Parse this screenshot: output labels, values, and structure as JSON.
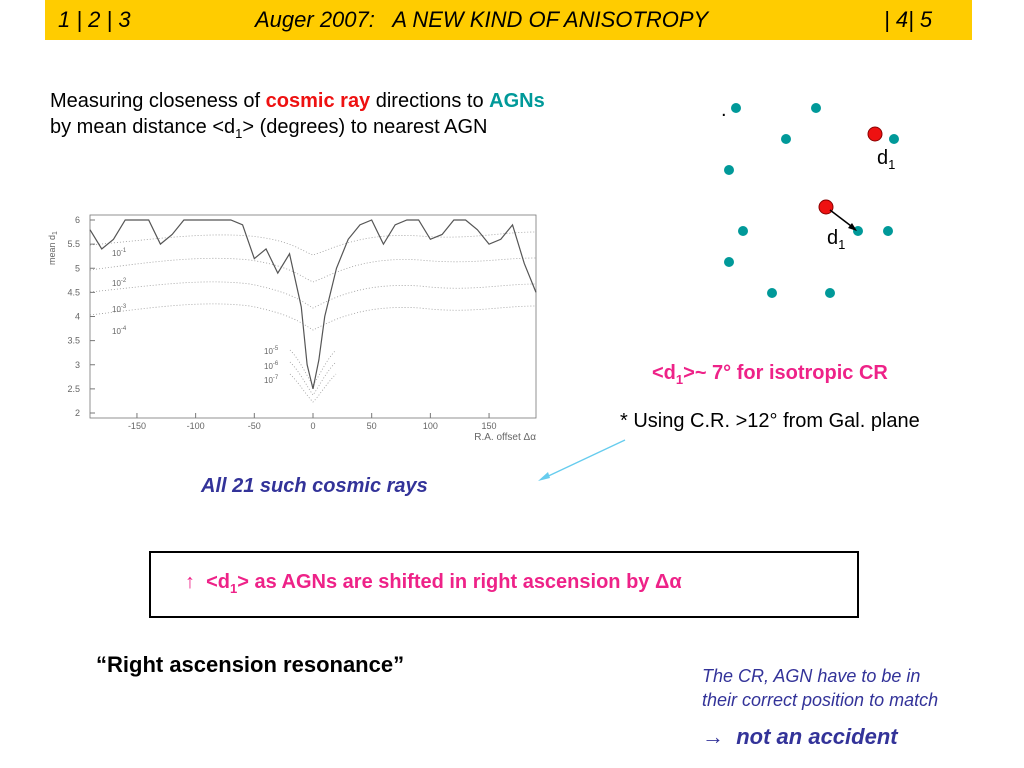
{
  "header": {
    "left": "1 | 2 | 3",
    "title": "Auger 2007:   A NEW KIND OF ANISOTROPY",
    "right": "| 4| 5"
  },
  "intro": {
    "a": "Measuring closeness of ",
    "b": "cosmic ray",
    "c": " directions to ",
    "d": "AGNs",
    "e": "by mean distance <d",
    "f": "1",
    "g": "> (degrees) to nearest AGN"
  },
  "diagram": {
    "dot": ".",
    "label1": {
      "text": "d",
      "sub": "1"
    },
    "label2": {
      "text": "d",
      "sub": "1"
    }
  },
  "isotropic": {
    "a": "<d",
    "b": "1",
    "c": ">~ 7° for isotropic CR"
  },
  "note": "* Using C.R. >12° from Gal. plane",
  "all21": "All 21 such cosmic rays",
  "box": {
    "a": "↑  <d",
    "b": "1",
    "c": "> as AGNs are shifted in right ascension by Δα"
  },
  "resonance": "“Right ascension resonance”",
  "footnote": {
    "line1": "The CR, AGN have to be in",
    "line2": "their correct position to match",
    "arrow": "→",
    "line3": "not an accident"
  },
  "chart_data": {
    "type": "line",
    "ylabel": {
      "text": "mean d",
      "sub": "1"
    },
    "xlabel": "R.A. offset  Δα",
    "xlim": [
      -190,
      190
    ],
    "ylim": [
      2,
      6
    ],
    "xticks": [
      -150,
      -100,
      -50,
      0,
      50,
      100,
      150
    ],
    "yticks": [
      2,
      2.5,
      3,
      3.5,
      4,
      4.5,
      5,
      5.5,
      6
    ],
    "curve_labels": [
      {
        "base": "10",
        "exp": "-1"
      },
      {
        "base": "10",
        "exp": "-2"
      },
      {
        "base": "10",
        "exp": "-3"
      },
      {
        "base": "10",
        "exp": "-4"
      },
      {
        "base": "10",
        "exp": "-5"
      },
      {
        "base": "10",
        "exp": "-6"
      },
      {
        "base": "10",
        "exp": "-7"
      }
    ],
    "x": [
      -190,
      -180,
      -170,
      -160,
      -150,
      -140,
      -130,
      -120,
      -110,
      -100,
      -90,
      -80,
      -70,
      -60,
      -50,
      -40,
      -30,
      -20,
      -10,
      -5,
      0,
      5,
      10,
      20,
      30,
      40,
      50,
      60,
      70,
      80,
      90,
      100,
      110,
      120,
      130,
      140,
      150,
      160,
      170,
      180,
      190
    ],
    "series": [
      {
        "color": "#555555",
        "values": [
          5.8,
          5.4,
          5.6,
          6,
          6,
          6,
          5.5,
          5.7,
          6,
          6,
          6,
          6,
          6,
          5.9,
          5.2,
          5.4,
          4.9,
          5.3,
          4.2,
          3.0,
          2.5,
          3.1,
          4.0,
          5.0,
          5.6,
          5.9,
          6,
          5.5,
          5.9,
          6,
          6,
          5.6,
          5.7,
          6,
          6,
          5.8,
          5.5,
          5.6,
          5.9,
          5.1,
          4.5
        ]
      }
    ]
  }
}
